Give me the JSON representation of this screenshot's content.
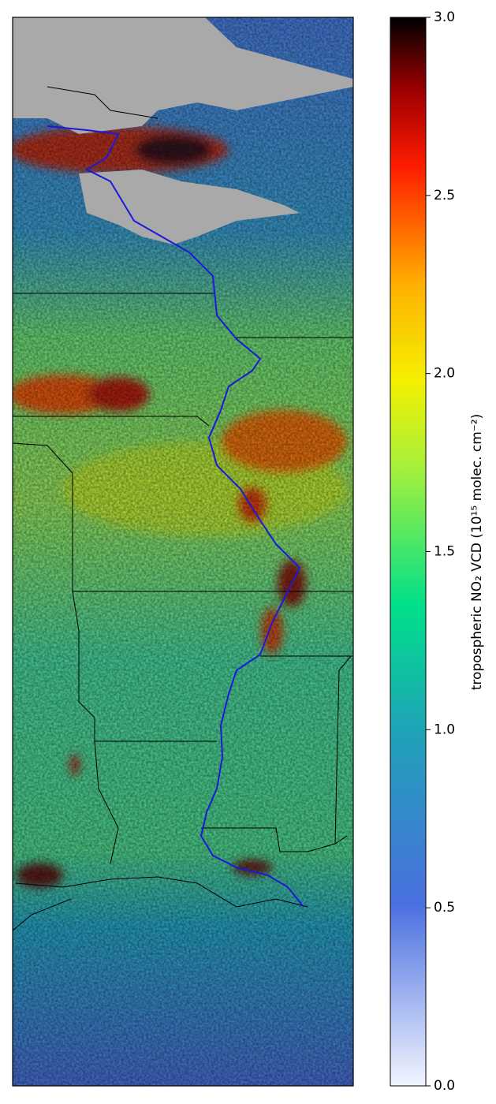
{
  "colorbar": {
    "label": "tropospheric NO₂ VCD (10¹⁵ molec. cm⁻²)",
    "lim": [
      0,
      3
    ],
    "ticks": [
      {
        "value": 0,
        "label": "0.0"
      },
      0.5,
      {
        "value": 1,
        "label": "1.0"
      },
      1.5,
      {
        "value": 2,
        "label": "2.0"
      },
      2.5,
      {
        "value": 3,
        "label": "3.0"
      }
    ]
  }
}
